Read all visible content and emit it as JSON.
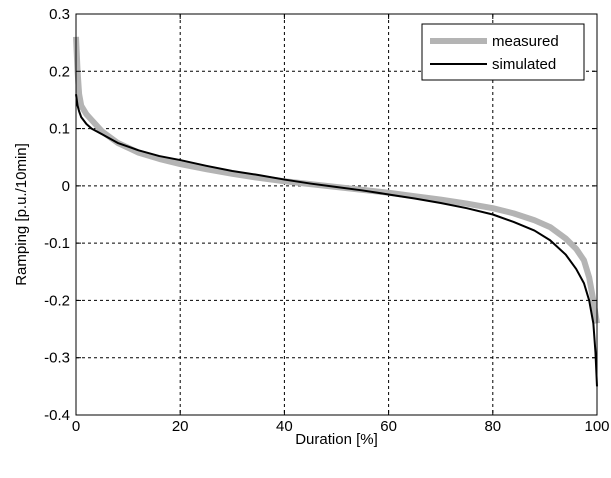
{
  "chart_data": {
    "type": "line",
    "xlabel": "Duration [%]",
    "ylabel": "Ramping [p.u./10min]",
    "xlim": [
      0,
      100
    ],
    "ylim": [
      -0.4,
      0.3
    ],
    "xticks": [
      0,
      20,
      40,
      60,
      80,
      100
    ],
    "yticks": [
      -0.4,
      -0.3,
      -0.2,
      -0.1,
      0,
      0.1,
      0.2,
      0.3
    ],
    "xtick_labels": [
      "0",
      "20",
      "40",
      "60",
      "80",
      "100"
    ],
    "ytick_labels": [
      "-0.4",
      "-0.3",
      "-0.2",
      "-0.1",
      "0",
      "0.1",
      "0.2",
      "0.3"
    ],
    "grid": true,
    "legend_position": "top-right",
    "series": [
      {
        "name": "measured",
        "color": "#b4b4b4",
        "x": [
          0,
          0.3,
          0.6,
          1,
          2,
          3,
          5,
          8,
          12,
          16,
          20,
          25,
          30,
          35,
          40,
          45,
          50,
          55,
          60,
          65,
          70,
          75,
          80,
          84,
          88,
          91,
          94,
          96,
          97.5,
          98.5,
          99.3,
          100
        ],
        "y": [
          0.26,
          0.2,
          0.16,
          0.14,
          0.125,
          0.115,
          0.095,
          0.075,
          0.058,
          0.047,
          0.038,
          0.029,
          0.021,
          0.014,
          0.008,
          0.003,
          -0.002,
          -0.007,
          -0.012,
          -0.018,
          -0.024,
          -0.031,
          -0.039,
          -0.048,
          -0.06,
          -0.072,
          -0.092,
          -0.11,
          -0.13,
          -0.16,
          -0.2,
          -0.24
        ]
      },
      {
        "name": "simulated",
        "color": "#000000",
        "x": [
          0,
          0.3,
          0.6,
          1,
          2,
          3,
          5,
          8,
          12,
          16,
          20,
          25,
          30,
          35,
          40,
          45,
          50,
          55,
          60,
          65,
          70,
          75,
          80,
          84,
          88,
          91,
          94,
          96,
          97.5,
          98.5,
          99.3,
          99.7,
          100
        ],
        "y": [
          0.16,
          0.14,
          0.13,
          0.12,
          0.108,
          0.1,
          0.09,
          0.075,
          0.062,
          0.052,
          0.045,
          0.035,
          0.026,
          0.019,
          0.011,
          0.004,
          -0.002,
          -0.008,
          -0.015,
          -0.022,
          -0.03,
          -0.039,
          -0.05,
          -0.063,
          -0.078,
          -0.095,
          -0.12,
          -0.145,
          -0.17,
          -0.2,
          -0.24,
          -0.29,
          -0.35
        ]
      }
    ]
  }
}
